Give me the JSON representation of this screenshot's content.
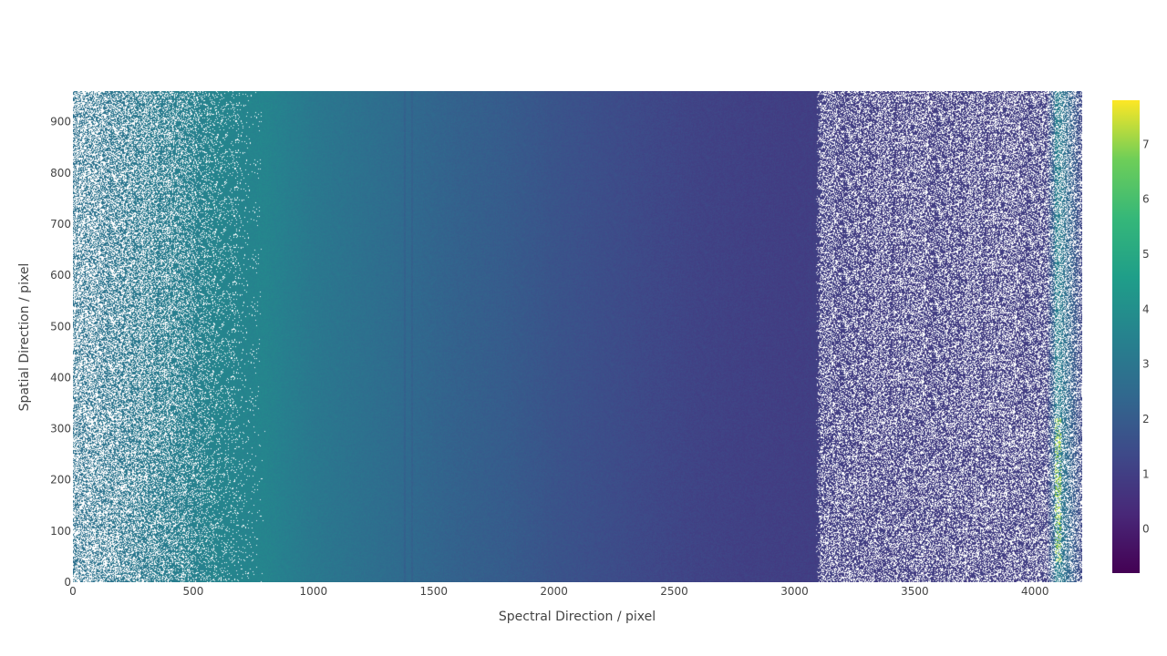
{
  "chart_data": {
    "type": "heatmap",
    "title": "",
    "xlabel": "Spectral Direction / pixel",
    "ylabel": "Spatial Direction / pixel",
    "xlim": [
      0,
      4196
    ],
    "ylim": [
      0,
      960
    ],
    "x_ticks": [
      "0",
      "500",
      "1000",
      "1500",
      "2000",
      "2500",
      "3000",
      "3500",
      "4000"
    ],
    "y_ticks": [
      "0",
      "100",
      "200",
      "300",
      "400",
      "500",
      "600",
      "700",
      "800",
      "900"
    ],
    "colorscale": "viridis",
    "colorbar": {
      "range": [
        -0.8,
        7.8
      ],
      "ticks": [
        "0",
        "1",
        "2",
        "3",
        "4",
        "5",
        "6",
        "7"
      ]
    },
    "missing_color": "#ffffff",
    "intensity_profile": {
      "x": [
        0,
        200,
        400,
        600,
        800,
        1000,
        1200,
        1400,
        1600,
        1800,
        2000,
        2200,
        2400,
        2600,
        2800,
        3000,
        3100,
        3300,
        3500,
        3700,
        3900,
        4050,
        4100,
        4196
      ],
      "value": [
        2.8,
        3.0,
        3.3,
        3.6,
        3.6,
        3.1,
        2.8,
        2.5,
        2.2,
        2.0,
        1.7,
        1.5,
        1.3,
        1.15,
        1.05,
        1.0,
        1.0,
        0.95,
        0.95,
        0.95,
        0.95,
        1.0,
        3.3,
        1.2
      ]
    },
    "missing_fraction_profile": {
      "x": [
        0,
        200,
        400,
        600,
        700,
        800,
        3090,
        3110,
        4196
      ],
      "value": [
        0.55,
        0.45,
        0.32,
        0.12,
        0.05,
        0.0,
        0.0,
        0.35,
        0.4
      ]
    },
    "features": [
      {
        "kind": "dark-column",
        "x": 1380,
        "value": 2.2
      },
      {
        "kind": "dark-column",
        "x": 1410,
        "value": 2.2
      },
      {
        "kind": "bright-line",
        "x": 4090,
        "y_range": [
          0,
          960
        ],
        "value": 3.3
      },
      {
        "kind": "bright-spots",
        "x": 4095,
        "y_range": [
          40,
          320
        ],
        "value": 7.2
      }
    ]
  }
}
